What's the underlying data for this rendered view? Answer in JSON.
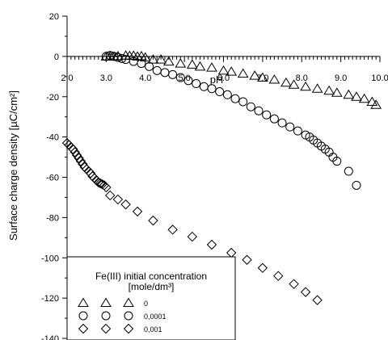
{
  "chart_data": {
    "type": "scatter",
    "title": "",
    "xlabel": "pH",
    "ylabel": "Surface charge density [µC/cm²]",
    "xlim": [
      2.0,
      10.0
    ],
    "ylim": [
      -140,
      20
    ],
    "x_ticks": [
      "2.0",
      "3.0",
      "4.0",
      "5.0",
      "6.0",
      "7.0",
      "8.0",
      "9.0",
      "10.0"
    ],
    "y_ticks": [
      "20",
      "0",
      "-20",
      "-40",
      "-60",
      "-80",
      "-100",
      "-120",
      "-140"
    ],
    "grid": false,
    "legend": {
      "title_line1": "Fe(III) initial concentration",
      "title_line2": "[mole/dm³]",
      "placement": "bottom-left",
      "entries": [
        "0",
        "0,0001",
        "0,001"
      ]
    },
    "series": [
      {
        "name": "0",
        "marker": "triangle",
        "x": [
          3.0,
          3.1,
          3.2,
          3.3,
          3.5,
          3.6,
          3.7,
          3.8,
          3.9,
          4.0,
          4.2,
          4.4,
          4.6,
          4.9,
          5.2,
          5.4,
          5.7,
          6.0,
          6.2,
          6.5,
          6.8,
          7.0,
          7.3,
          7.6,
          7.8,
          8.1,
          8.4,
          8.7,
          8.9,
          9.2,
          9.4,
          9.6,
          9.8,
          9.9
        ],
        "y": [
          0,
          0,
          0,
          0.2,
          0.5,
          0.3,
          0.4,
          0,
          0.2,
          -0.5,
          -1.5,
          -1.5,
          -2.5,
          -3.5,
          -4,
          -5,
          -5.5,
          -7,
          -7.5,
          -8.5,
          -9.5,
          -10.5,
          -11.5,
          -13,
          -14,
          -15,
          -16,
          -17,
          -18,
          -19,
          -20,
          -21,
          -22.5,
          -24
        ]
      },
      {
        "name": "0,0001",
        "marker": "circle",
        "x": [
          3.0,
          3.1,
          3.2,
          3.3,
          3.4,
          3.5,
          3.7,
          3.9,
          4.1,
          4.3,
          4.5,
          4.7,
          4.9,
          5.1,
          5.3,
          5.5,
          5.7,
          5.9,
          6.1,
          6.3,
          6.5,
          6.7,
          6.9,
          7.1,
          7.3,
          7.5,
          7.7,
          7.9,
          8.1,
          8.2,
          8.3,
          8.4,
          8.5,
          8.6,
          8.7,
          8.8,
          8.9,
          9.2,
          9.4
        ],
        "y": [
          0,
          0.5,
          0,
          -0.5,
          -1,
          -1.5,
          -2.5,
          -3.5,
          -5,
          -7,
          -8,
          -9,
          -10.5,
          -12,
          -13.5,
          -15,
          -16,
          -17.5,
          -19,
          -21,
          -22.5,
          -25,
          -27,
          -29,
          -31,
          -33,
          -35,
          -37,
          -39,
          -40,
          -41.5,
          -43,
          -44.5,
          -46,
          -47.5,
          -50,
          -52,
          -57,
          -64
        ]
      },
      {
        "name": "0,001",
        "marker": "diamond",
        "x": [
          2.0,
          2.05,
          2.1,
          2.15,
          2.2,
          2.25,
          2.3,
          2.35,
          2.4,
          2.45,
          2.5,
          2.55,
          2.6,
          2.65,
          2.7,
          2.75,
          2.8,
          2.85,
          2.9,
          2.95,
          3.0,
          3.1,
          3.3,
          3.5,
          3.8,
          4.2,
          4.7,
          5.2,
          5.7,
          6.2,
          6.6,
          7.0,
          7.4,
          7.8,
          8.1,
          8.4
        ],
        "y": [
          -43,
          -44,
          -45,
          -46,
          -47.5,
          -49,
          -50.5,
          -52,
          -53.5,
          -55,
          -56,
          -57,
          -58,
          -59.5,
          -60.5,
          -61.5,
          -62.5,
          -63,
          -63.5,
          -64,
          -65,
          -69,
          -71,
          -73.5,
          -77,
          -81.5,
          -86,
          -89.5,
          -93.5,
          -97.5,
          -101,
          -105,
          -109,
          -113,
          -117,
          -121
        ]
      }
    ]
  }
}
